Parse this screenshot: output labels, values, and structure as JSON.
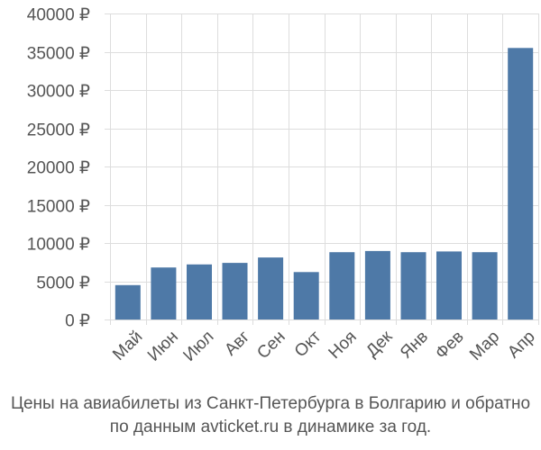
{
  "chart_data": {
    "type": "bar",
    "categories": [
      "Май",
      "Июн",
      "Июл",
      "Авг",
      "Сен",
      "Окт",
      "Ноя",
      "Дек",
      "Янв",
      "Фев",
      "Мар",
      "Апр"
    ],
    "values": [
      4500,
      6800,
      7200,
      7400,
      8100,
      6200,
      8800,
      8950,
      8800,
      8900,
      8800,
      35500
    ],
    "y_ticks": [
      "0 ₽",
      "5000 ₽",
      "10000 ₽",
      "15000 ₽",
      "20000 ₽",
      "25000 ₽",
      "30000 ₽",
      "35000 ₽",
      "40000 ₽"
    ],
    "ylim": [
      0,
      40000
    ],
    "grid": true,
    "bar_color": "#4e79a7",
    "title": "",
    "xlabel": "",
    "ylabel": ""
  },
  "caption": {
    "line1": "Цены на авиабилеты из Санкт-Петербурга в Болгарию и обратно",
    "line2": "по данным avticket.ru в динамике за год."
  }
}
